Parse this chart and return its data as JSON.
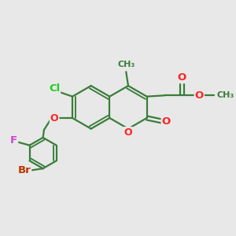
{
  "bg_color": "#e8e8e8",
  "bond_color": "#3a7d3a",
  "bond_width": 1.6,
  "atom_colors": {
    "O": "#ff2222",
    "Cl": "#22cc22",
    "F": "#cc44cc",
    "Br": "#bb3300",
    "C": "#3a7d3a"
  },
  "font_size": 9.5,
  "figsize": [
    3.0,
    3.0
  ],
  "dpi": 100
}
